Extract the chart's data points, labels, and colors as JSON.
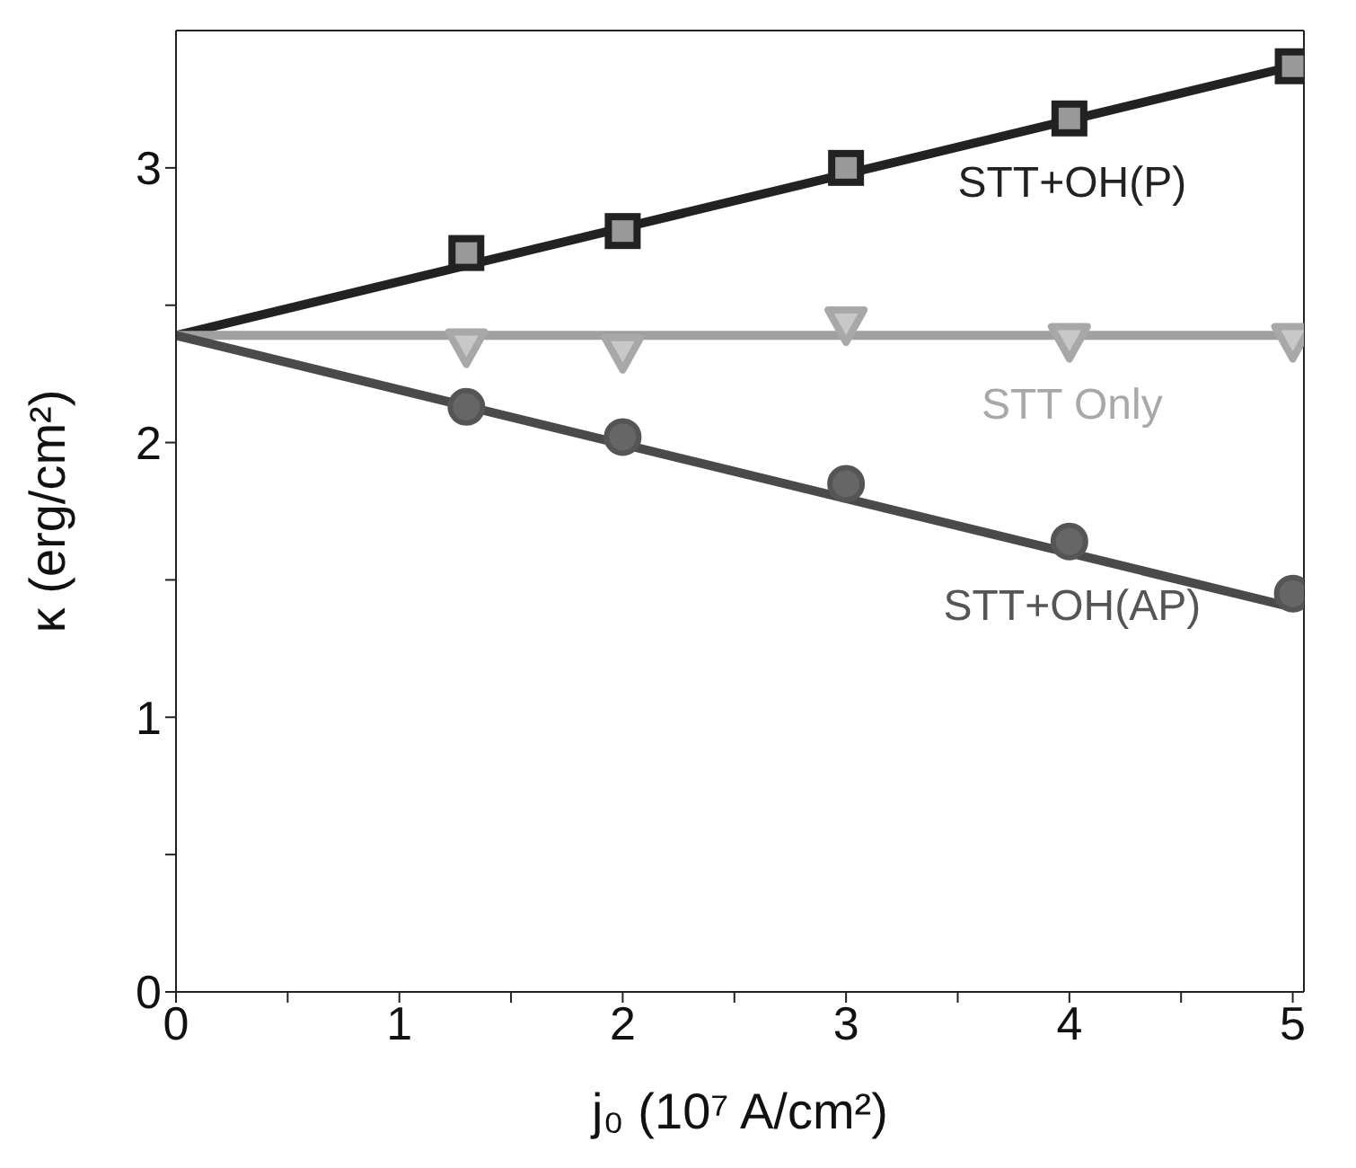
{
  "chart_data": {
    "type": "scatter",
    "xlabel": "j₀ (10⁷ A/cm²)",
    "ylabel": "κ (erg/cm²)",
    "xlim": [
      0,
      5.05
    ],
    "ylim": [
      0,
      3.5
    ],
    "xticks": [
      0,
      {
        "value": 0.5,
        "label": null
      },
      1,
      {
        "value": 1.5,
        "label": null
      },
      2,
      {
        "value": 2.5,
        "label": null
      },
      3,
      {
        "value": 3.5,
        "label": null
      },
      4,
      {
        "value": 4.5,
        "label": null
      },
      5
    ],
    "yticks": [
      0,
      {
        "value": 0.5,
        "label": null
      },
      1,
      {
        "value": 1.5,
        "label": null
      },
      2,
      {
        "value": 2.5,
        "label": null
      },
      3
    ],
    "grid": false,
    "legend": false,
    "series": [
      {
        "type": "line",
        "color": "#222222",
        "x": [
          0,
          5
        ],
        "values": [
          2.39,
          3.37
        ],
        "marker": "none",
        "line_style": "solid"
      },
      {
        "type": "line",
        "color": "#a0a0a0",
        "x": [
          0,
          5
        ],
        "values": [
          2.39,
          2.39
        ],
        "marker": "none",
        "line_style": "solid"
      },
      {
        "type": "line",
        "color": "#4a4a4a",
        "x": [
          0,
          5
        ],
        "values": [
          2.39,
          1.4
        ],
        "marker": "none",
        "line_style": "solid"
      },
      {
        "type": "scatter",
        "name": "STT+OH(P)",
        "color": "#222222",
        "x": [
          1.3,
          2,
          3,
          4,
          5
        ],
        "values": [
          2.69,
          2.77,
          3.0,
          3.18,
          3.37
        ],
        "marker": "square"
      },
      {
        "type": "scatter",
        "name": "STT Only",
        "color": "#a8a8a8",
        "x": [
          1.3,
          2,
          3,
          4,
          5
        ],
        "values": [
          2.35,
          2.33,
          2.43,
          2.37,
          2.37
        ],
        "marker": "triangle"
      },
      {
        "type": "scatter",
        "name": "STT+OH(AP)",
        "color": "#555555",
        "x": [
          1.3,
          2,
          3,
          4,
          5
        ],
        "values": [
          2.13,
          2.02,
          1.85,
          1.64,
          1.45
        ],
        "marker": "circle"
      }
    ]
  }
}
